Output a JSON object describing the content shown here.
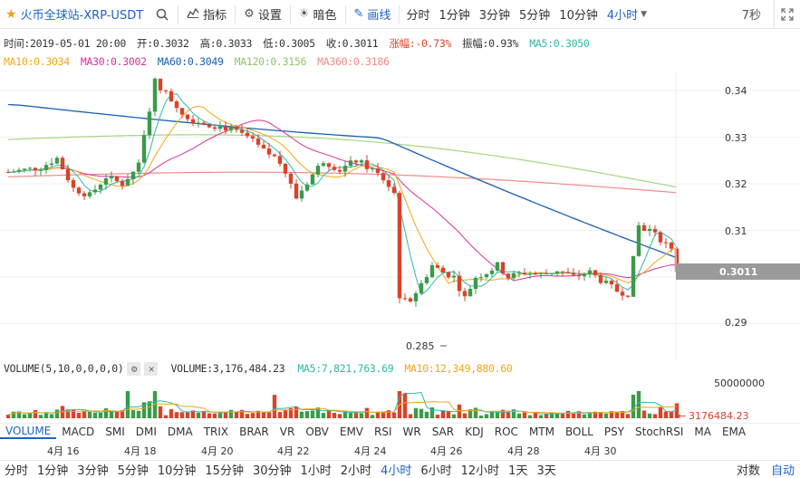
{
  "toolbar": {
    "title": "火币全球站-XRP-USDT",
    "buttons": [
      {
        "label": "指标",
        "icon": "indicator-icon"
      },
      {
        "label": "设置",
        "icon": "gear-icon"
      },
      {
        "label": "暗色",
        "icon": "theme-icon"
      },
      {
        "label": "画线",
        "icon": "pencil-icon",
        "active": true
      }
    ],
    "periods": [
      "分时",
      "1分钟",
      "3分钟",
      "5分钟",
      "10分钟",
      "4小时"
    ],
    "active_period": "4小时",
    "countdown": "7秒"
  },
  "info": {
    "time": "时间:2019-05-01 20:00",
    "open": "开:0.3032",
    "high": "高:0.3033",
    "low": "低:0.3005",
    "close": "收:0.3011",
    "change": "涨幅:-0.73%",
    "amplitude": "振幅:0.93%",
    "ma5": "MA5:0.3050",
    "ma10": "MA10:0.3034",
    "ma30": "MA30:0.3002",
    "ma60": "MA60:0.3049",
    "ma120": "MA120:0.3156",
    "ma360": "MA360:0.3186"
  },
  "colors": {
    "up": "#3a9b4a",
    "down": "#d9432b",
    "ma5": "#2fb9a8",
    "ma10": "#f0a818",
    "ma30": "#d9329a",
    "ma60": "#1a5fb4",
    "ma120": "#a6d67e",
    "ma360": "#f08b8b",
    "accent": "#1e62c8"
  },
  "price_axis": {
    "ticks": [
      "0.34",
      "0.33",
      "0.32",
      "0.31",
      "0.29"
    ],
    "current_price": "0.3011",
    "low_label": "0.285"
  },
  "volume": {
    "title": "VOLUME(5,10,0,0,0,0)",
    "value": "VOLUME:3,176,484.23",
    "ma5": "MA5:7,821,763.69",
    "ma10": "MA10:12,349,880.60",
    "axis_tick": "50000000",
    "current": "3176484.23"
  },
  "indicators": [
    "VOLUME",
    "MACD",
    "SMI",
    "DMI",
    "DMA",
    "TRIX",
    "BRAR",
    "VR",
    "OBV",
    "EMV",
    "RSI",
    "WR",
    "SAR",
    "KDJ",
    "ROC",
    "MTM",
    "BOLL",
    "PSY",
    "StochRSI",
    "MA",
    "EMA"
  ],
  "active_indicator": "VOLUME",
  "dates": [
    "4月 16",
    "4月 18",
    "4月 20",
    "4月 22",
    "4月 24",
    "4月 26",
    "4月 28",
    "4月 30"
  ],
  "bottom_periods": [
    "分时",
    "1分钟",
    "3分钟",
    "5分钟",
    "10分钟",
    "15分钟",
    "30分钟",
    "1小时",
    "2小时",
    "4小时",
    "6小时",
    "12小时",
    "1天",
    "3天"
  ],
  "bottom_active": "4小时",
  "bottom_right": [
    "对数",
    "自动"
  ]
}
